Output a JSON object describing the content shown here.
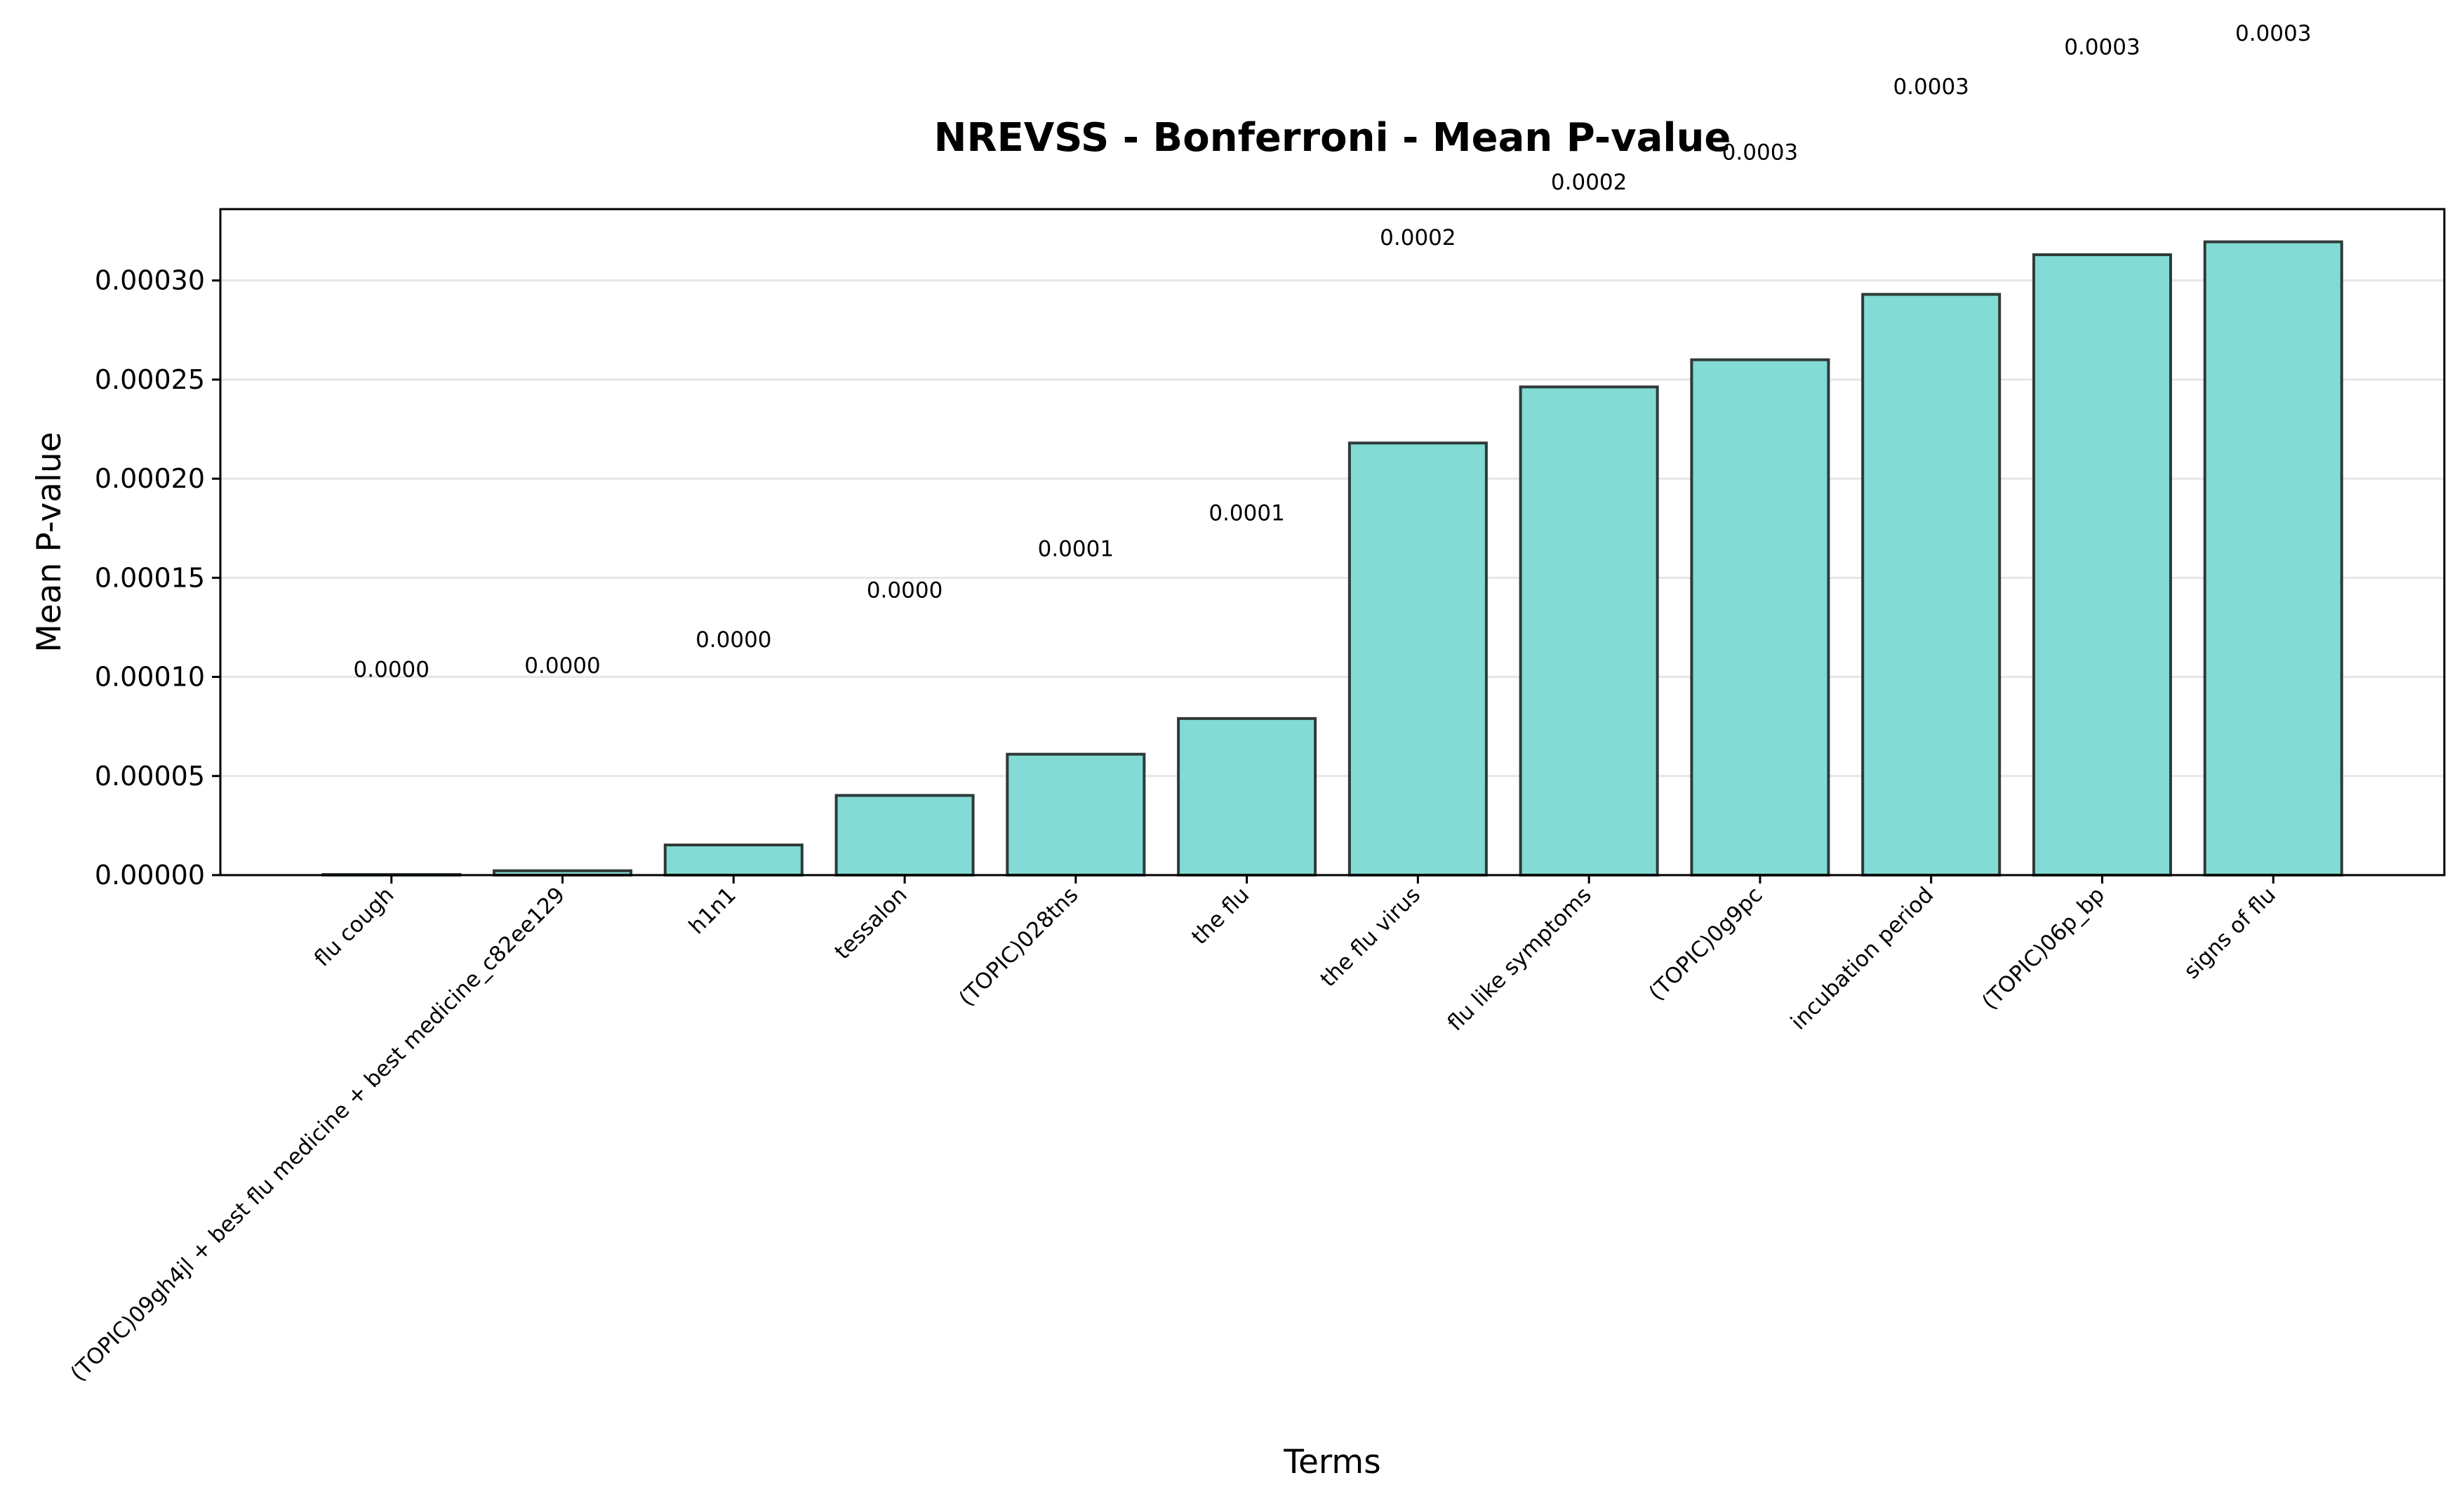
{
  "chart_data": {
    "type": "bar",
    "title": "NREVSS - Bonferroni - Mean P-value",
    "xlabel": "Terms",
    "ylabel": "Mean P-value",
    "categories": [
      "flu cough",
      "(TOPIC)09gh4jl + best flu medicine + best medicine_c82ee129",
      "h1n1",
      "tessalon",
      "(TOPIC)028tns",
      "the flu",
      "the flu virus",
      "flu like symptoms",
      "(TOPIC)0g9pc",
      "incubation period",
      "(TOPIC)06p_bp",
      "signs of flu"
    ],
    "values": [
      3e-07,
      2.2e-06,
      1.52e-05,
      4.02e-05,
      6.1e-05,
      7.9e-05,
      0.000218,
      0.0002463,
      0.00026,
      0.000293,
      0.000313,
      0.0003195
    ],
    "data_labels": [
      "0.0000",
      "0.0000",
      "0.0000",
      "0.0000",
      "0.0001",
      "0.0001",
      "0.0002",
      "0.0002",
      "0.0003",
      "0.0003",
      "0.0003",
      "0.0003"
    ],
    "data_label_y": [
      0.0001,
      0.000102,
      0.000115,
      0.00014,
      0.000161,
      0.000179,
      0.000318,
      0.000346,
      0.000361,
      0.000394,
      0.000414,
      0.000421
    ],
    "ylim": [
      0,
      0.000336
    ],
    "yticks": [
      0,
      5e-05,
      0.0001,
      0.00015,
      0.0002,
      0.00025,
      0.0003
    ],
    "ytick_labels": [
      "0.00000",
      "0.00005",
      "0.00010",
      "0.00015",
      "0.00020",
      "0.00025",
      "0.00030"
    ],
    "grid": "horizontal",
    "colors": {
      "bar_fill": "#82dbd4",
      "bar_edge": "#2f3a38",
      "grid": "#e6e6e6",
      "axes": "#000000"
    }
  }
}
